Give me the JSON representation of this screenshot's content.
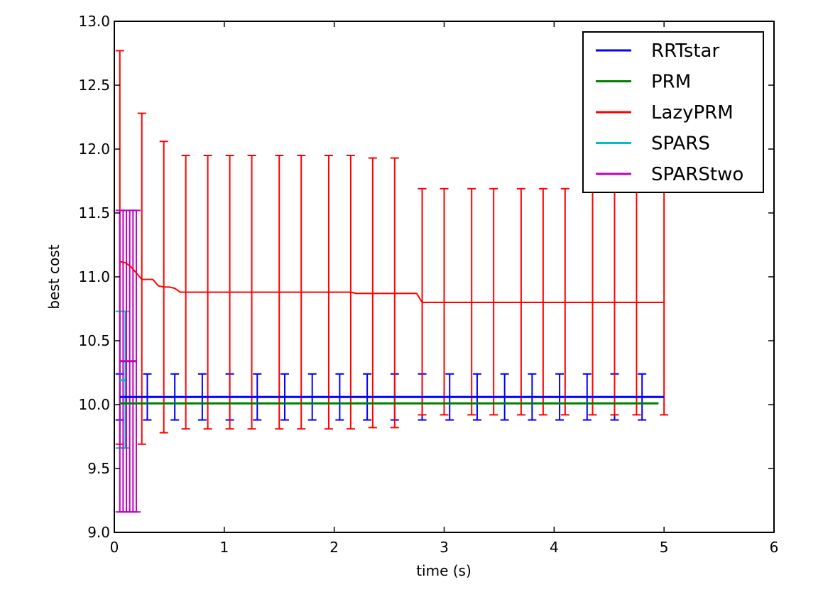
{
  "chart_data": {
    "type": "line",
    "title": "",
    "xlabel": "time (s)",
    "ylabel": "best cost",
    "xlim": [
      0,
      6
    ],
    "ylim": [
      9.0,
      13.0
    ],
    "xticks": [
      "0",
      "1",
      "2",
      "3",
      "4",
      "5",
      "6"
    ],
    "yticks": [
      "9.0",
      "9.5",
      "10.0",
      "10.5",
      "11.0",
      "11.5",
      "12.0",
      "12.5",
      "13.0"
    ],
    "grid": false,
    "legend_position": "top-right",
    "series": [
      {
        "name": "RRTstar",
        "color": "#0000ff",
        "x": [
          0.05,
          5.0
        ],
        "y": [
          10.06,
          10.06
        ],
        "errorbars": {
          "x": [
            0.05,
            0.3,
            0.55,
            0.8,
            1.05,
            1.3,
            1.55,
            1.8,
            2.05,
            2.3,
            2.55,
            2.8,
            3.05,
            3.3,
            3.55,
            3.8,
            4.05,
            4.3,
            4.55,
            4.8
          ],
          "low": [
            9.88,
            9.88,
            9.88,
            9.88,
            9.88,
            9.88,
            9.88,
            9.88,
            9.88,
            9.88,
            9.88,
            9.88,
            9.88,
            9.88,
            9.88,
            9.88,
            9.88,
            9.88,
            9.88,
            9.88
          ],
          "high": [
            10.24,
            10.24,
            10.24,
            10.24,
            10.24,
            10.24,
            10.24,
            10.24,
            10.24,
            10.24,
            10.24,
            10.24,
            10.24,
            10.24,
            10.24,
            10.24,
            10.24,
            10.24,
            10.24,
            10.24
          ]
        }
      },
      {
        "name": "PRM",
        "color": "#008000",
        "x": [
          0.05,
          4.95
        ],
        "y": [
          10.01,
          10.01
        ]
      },
      {
        "name": "LazyPRM",
        "color": "#ff0000",
        "x": [
          0.05,
          0.1,
          0.15,
          0.2,
          0.25,
          0.3,
          0.35,
          0.4,
          0.45,
          0.5,
          0.55,
          0.6,
          1.0,
          1.5,
          2.0,
          2.15,
          2.2,
          2.5,
          2.75,
          2.8,
          3.0,
          4.0,
          5.0
        ],
        "y": [
          11.12,
          11.11,
          11.08,
          11.03,
          10.98,
          10.98,
          10.98,
          10.93,
          10.92,
          10.92,
          10.91,
          10.88,
          10.88,
          10.88,
          10.88,
          10.88,
          10.87,
          10.87,
          10.87,
          10.8,
          10.8,
          10.8,
          10.8
        ],
        "errorbars": {
          "x": [
            0.05,
            0.25,
            0.45,
            0.65,
            0.85,
            1.05,
            1.25,
            1.5,
            1.7,
            1.95,
            2.15,
            2.35,
            2.55,
            2.8,
            3.0,
            3.25,
            3.45,
            3.7,
            3.9,
            4.1,
            4.35,
            4.55,
            4.75,
            5.0
          ],
          "low": [
            9.69,
            9.69,
            9.78,
            9.81,
            9.81,
            9.81,
            9.81,
            9.81,
            9.81,
            9.81,
            9.81,
            9.82,
            9.82,
            9.92,
            9.92,
            9.92,
            9.92,
            9.92,
            9.92,
            9.92,
            9.92,
            9.92,
            9.92,
            9.92
          ],
          "high": [
            12.77,
            12.28,
            12.06,
            11.95,
            11.95,
            11.95,
            11.95,
            11.95,
            11.95,
            11.95,
            11.95,
            11.93,
            11.93,
            11.69,
            11.69,
            11.69,
            11.69,
            11.69,
            11.69,
            11.69,
            11.69,
            11.69,
            11.69,
            11.69
          ]
        }
      },
      {
        "name": "SPARS",
        "color": "#00bfbf",
        "x": [
          0.05,
          0.1
        ],
        "y": [
          10.19,
          10.19
        ],
        "errorbars": {
          "x": [
            0.05,
            0.1
          ],
          "low": [
            9.66,
            9.66
          ],
          "high": [
            10.73,
            10.73
          ]
        }
      },
      {
        "name": "SPARStwo",
        "color": "#bf00bf",
        "x": [
          0.05,
          0.2
        ],
        "y": [
          10.34,
          10.34
        ],
        "errorbars": {
          "x": [
            0.05,
            0.08,
            0.11,
            0.14,
            0.17,
            0.2
          ],
          "low": [
            9.16,
            9.16,
            9.16,
            9.16,
            9.16,
            9.16
          ],
          "high": [
            11.52,
            11.52,
            11.52,
            11.52,
            11.52,
            11.52
          ]
        }
      }
    ]
  }
}
